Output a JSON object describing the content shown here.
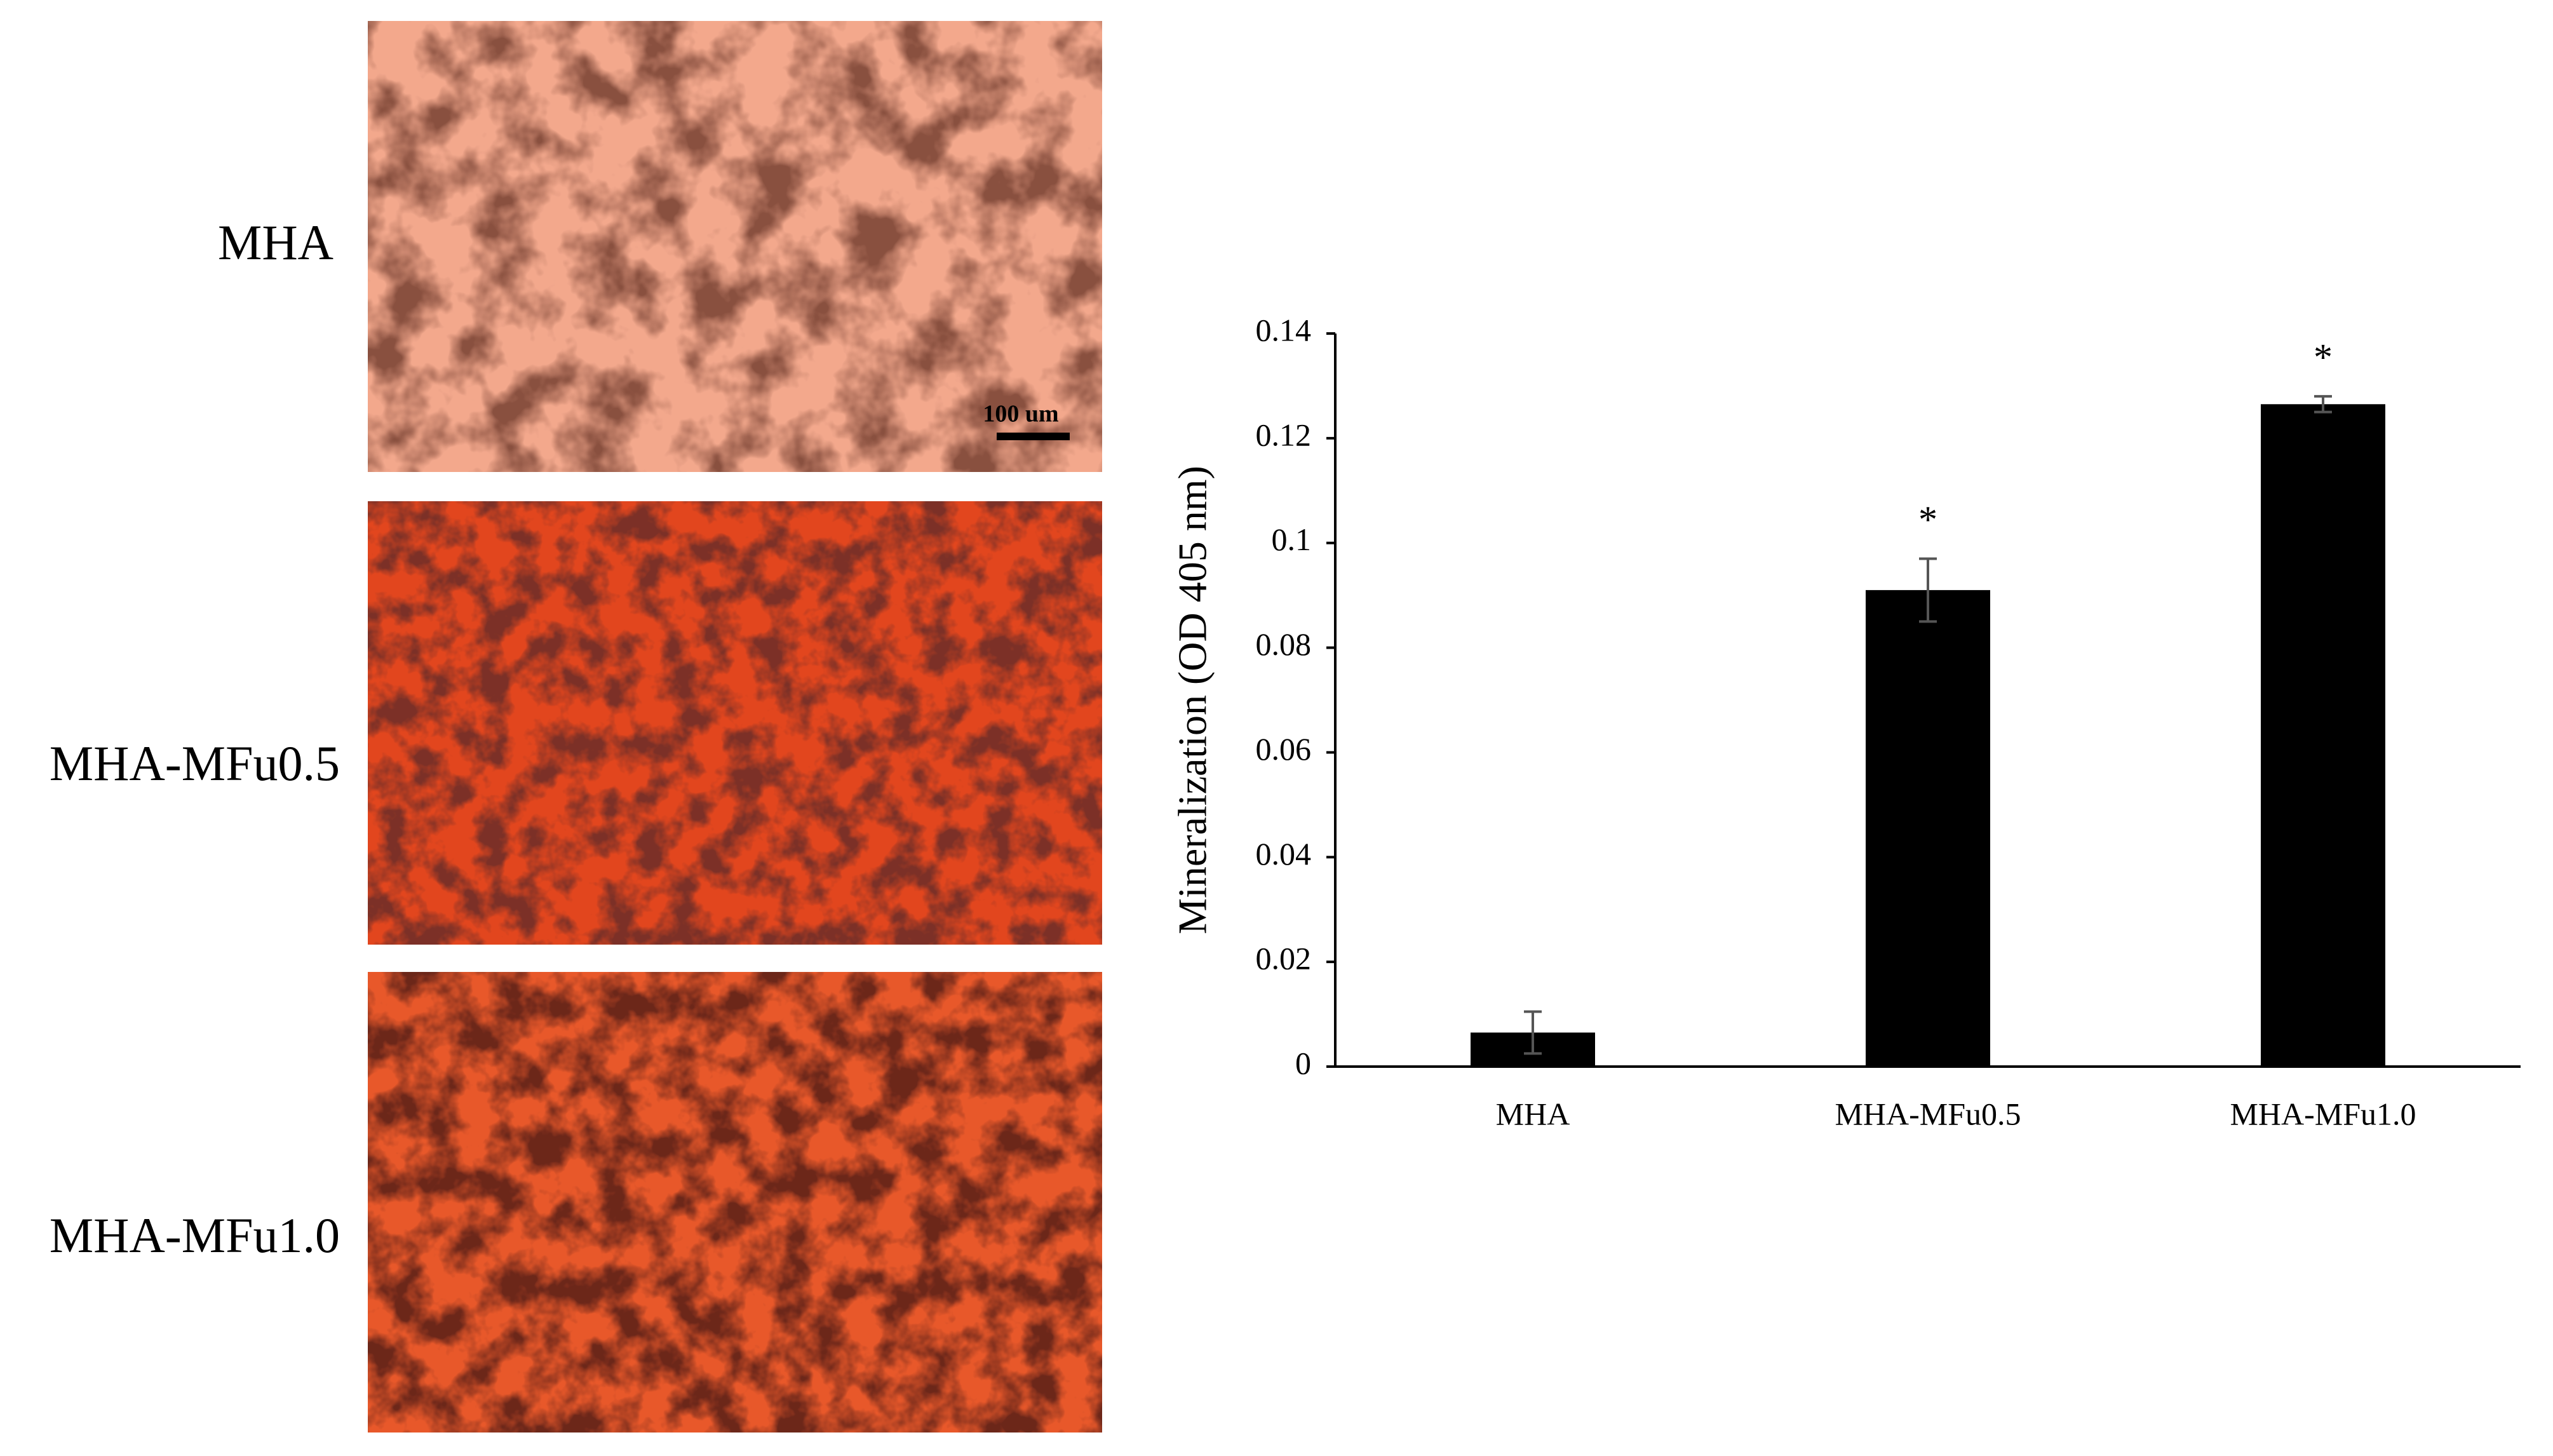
{
  "panels": [
    {
      "label": "MHA"
    },
    {
      "label": "MHA-MFu0.5"
    },
    {
      "label": "MHA-MFu1.0"
    }
  ],
  "scale_bar": "100 um",
  "chart_data": {
    "type": "bar",
    "y_label": "Mineralization (OD 405 nm)",
    "categories": [
      "MHA",
      "MHA-MFu0.5",
      "MHA-MFu1.0"
    ],
    "values": [
      0.0065,
      0.091,
      0.1265
    ],
    "errors": [
      0.004,
      0.006,
      0.0015
    ],
    "annotations": [
      null,
      "*",
      "*"
    ],
    "color": "#000000",
    "ylim": [
      0,
      0.14
    ],
    "yticks": [
      0,
      0.02,
      0.04,
      0.06,
      0.08,
      0.1,
      0.12,
      0.14
    ],
    "grid": false
  }
}
